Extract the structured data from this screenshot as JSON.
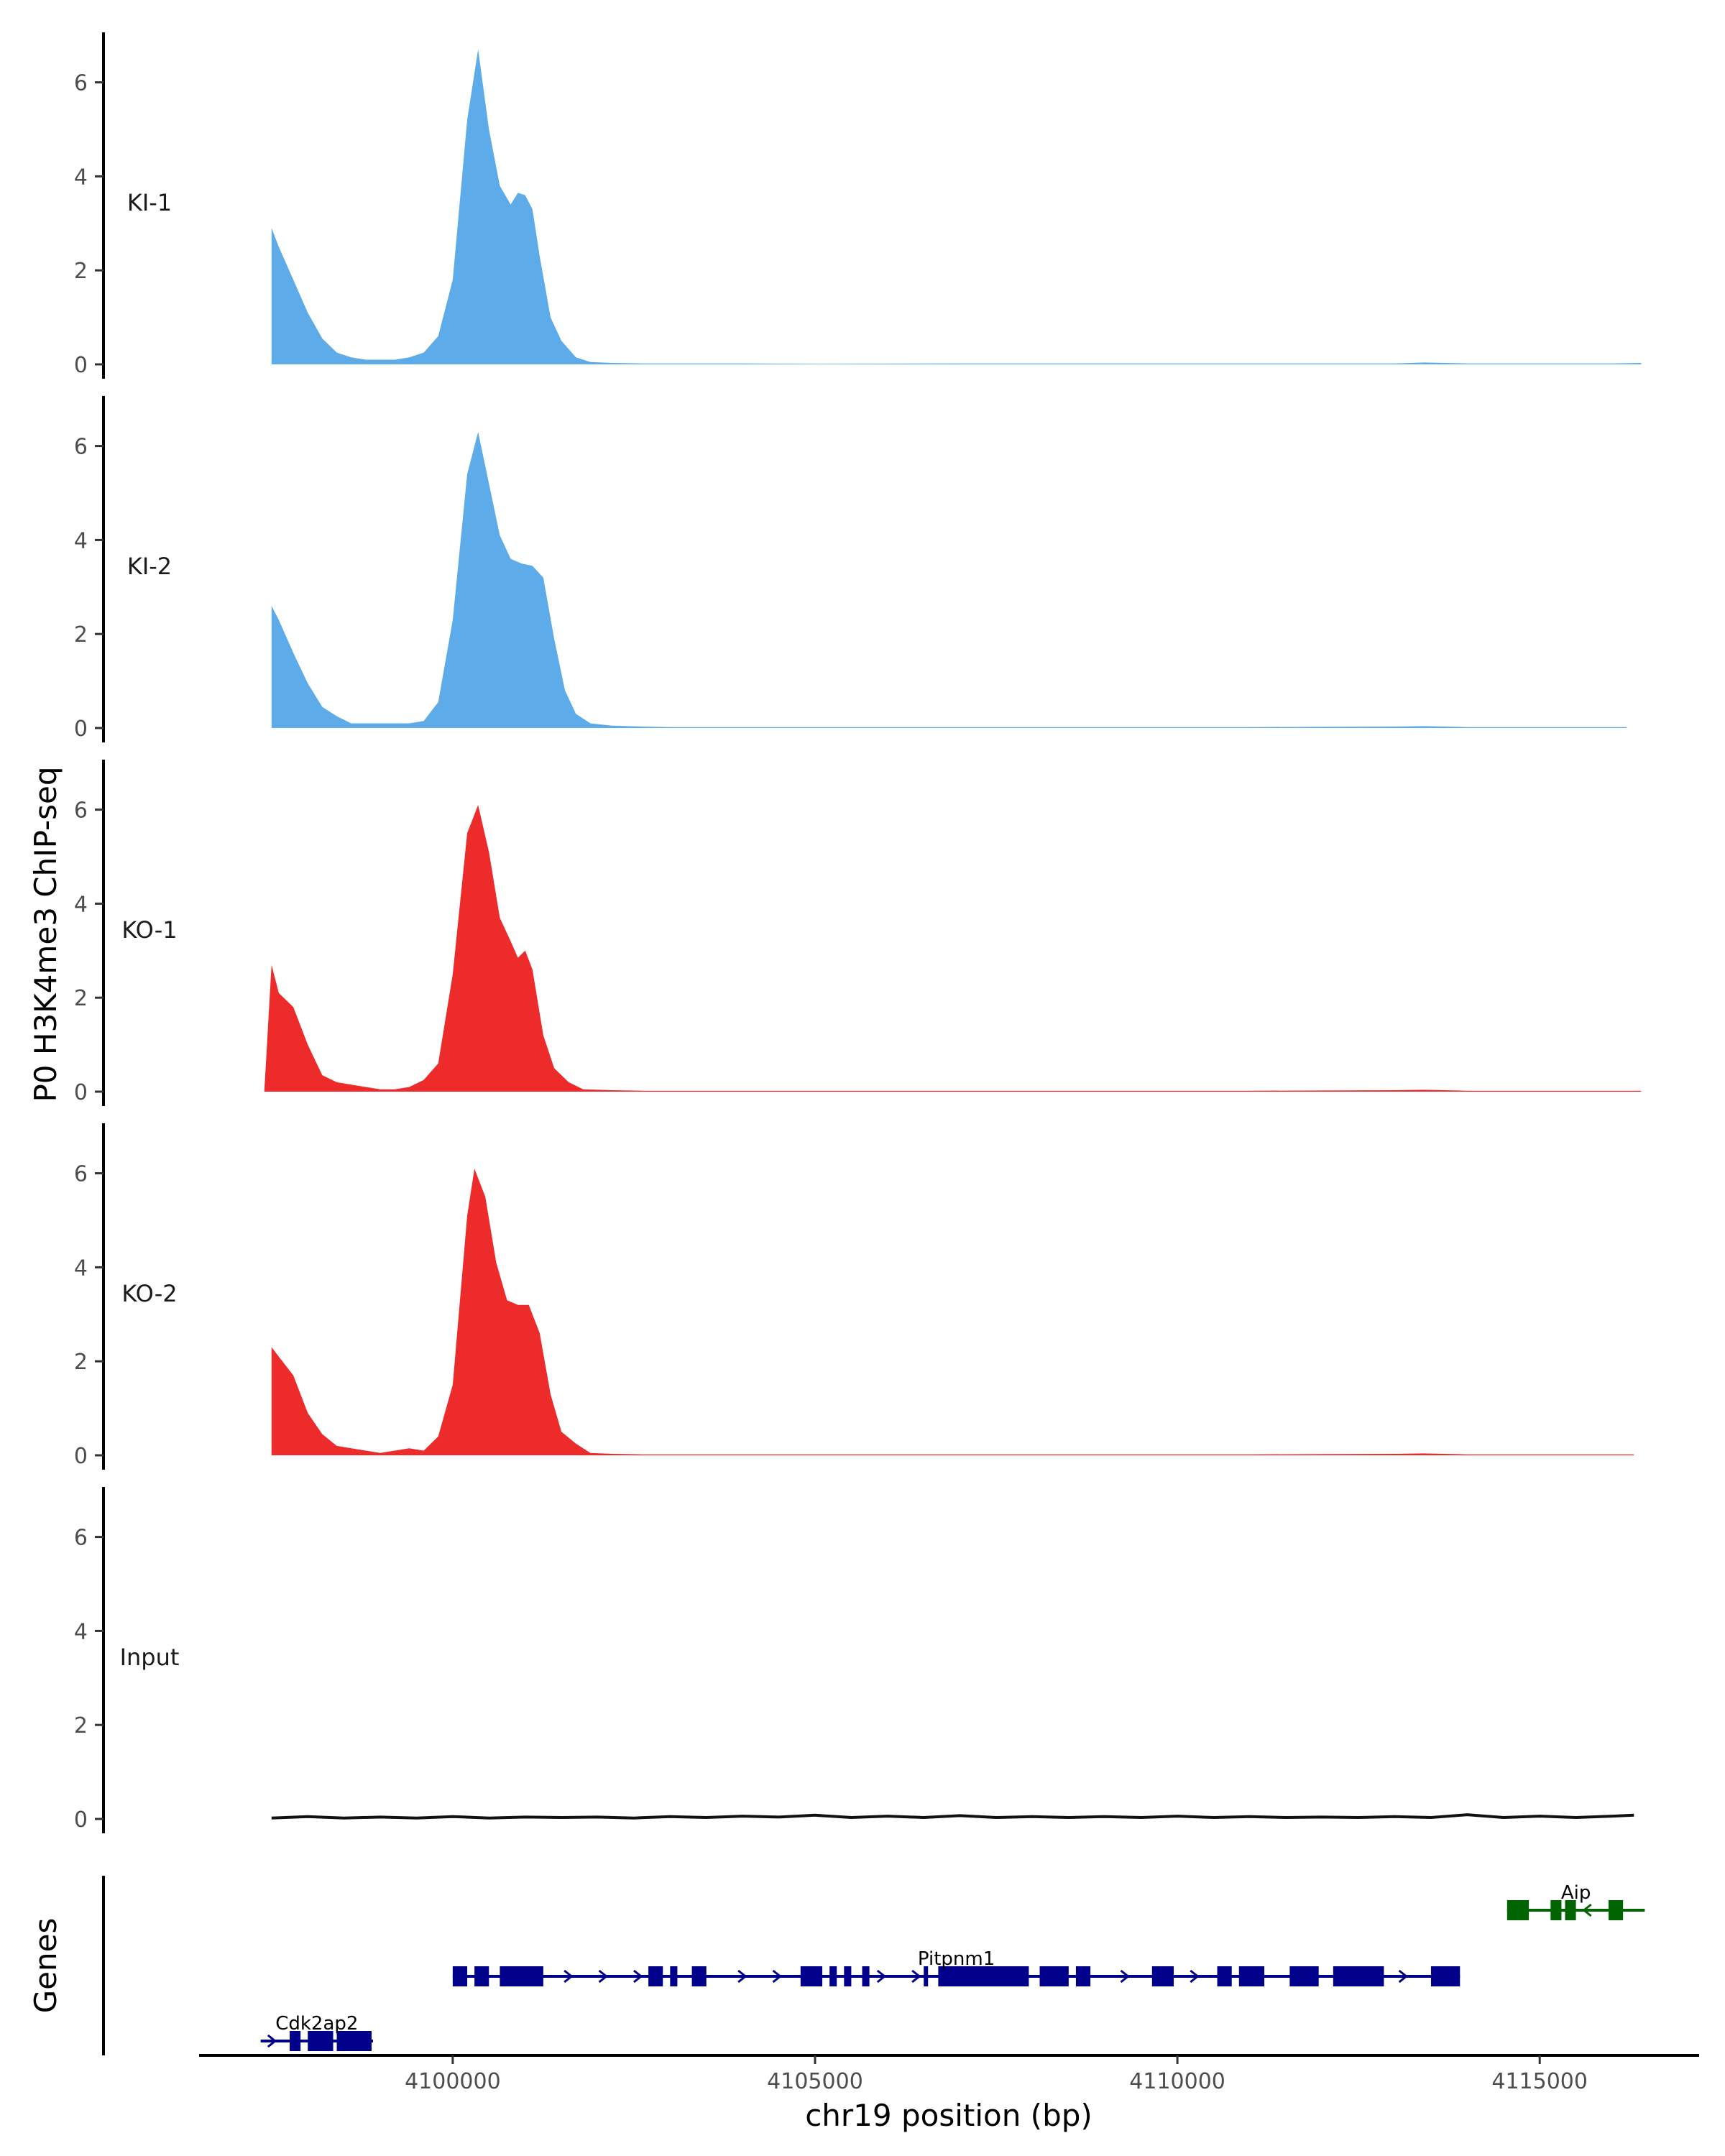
{
  "chart_data": {
    "type": "area",
    "xlabel": "chr19 position (bp)",
    "ylabel": "P0 H3K4me3 ChIP-seq",
    "gene_track_label": "Genes",
    "xlim": [
      4096500,
      4117200
    ],
    "x_ticks": [
      4100000,
      4105000,
      4110000,
      4115000
    ],
    "x_tick_labels": [
      "4100000",
      "4105000",
      "4110000",
      "4115000"
    ],
    "ylim": [
      0,
      7
    ],
    "y_ticks": [
      0,
      2,
      4,
      6
    ],
    "y_tick_labels": [
      "0",
      "2",
      "4",
      "6"
    ],
    "grid": false,
    "legend": "none",
    "colors": {
      "KI": "#5dabe9",
      "KO": "#ee2b2b",
      "Input": "#111111",
      "plus_strand_gene": "#00008b",
      "minus_strand_gene": "#006400"
    },
    "series": [
      {
        "name": "KI-1",
        "color": "#5dabe9",
        "x": [
          4097500,
          4097600,
          4097800,
          4098000,
          4098200,
          4098400,
          4098600,
          4098800,
          4099000,
          4099200,
          4099400,
          4099600,
          4099800,
          4100000,
          4100200,
          4100350,
          4100500,
          4100650,
          4100800,
          4100900,
          4101000,
          4101100,
          4101200,
          4101350,
          4101500,
          4101700,
          4101900,
          4102200,
          4102600,
          4103000,
          4104000,
          4105000,
          4107000,
          4109000,
          4111000,
          4113000,
          4113400,
          4114000,
          4115000,
          4116000,
          4116400
        ],
        "y": [
          2.9,
          2.5,
          1.8,
          1.1,
          0.55,
          0.25,
          0.15,
          0.1,
          0.1,
          0.1,
          0.15,
          0.25,
          0.6,
          1.8,
          5.2,
          6.7,
          5.0,
          3.8,
          3.4,
          3.65,
          3.6,
          3.3,
          2.3,
          1.0,
          0.5,
          0.15,
          0.05,
          0.03,
          0.02,
          0.02,
          0.02,
          0.01,
          0.02,
          0.02,
          0.02,
          0.02,
          0.04,
          0.02,
          0.02,
          0.02,
          0.03
        ]
      },
      {
        "name": "KI-2",
        "color": "#5dabe9",
        "x": [
          4097500,
          4097600,
          4097800,
          4098000,
          4098200,
          4098400,
          4098600,
          4098800,
          4099000,
          4099200,
          4099400,
          4099600,
          4099800,
          4100000,
          4100200,
          4100350,
          4100500,
          4100650,
          4100800,
          4100950,
          4101100,
          4101250,
          4101400,
          4101550,
          4101700,
          4101900,
          4102200,
          4102600,
          4103000,
          4104000,
          4105000,
          4107000,
          4109000,
          4111000,
          4113000,
          4113400,
          4114000,
          4115000,
          4116000,
          4116200
        ],
        "y": [
          2.6,
          2.3,
          1.6,
          0.95,
          0.45,
          0.25,
          0.1,
          0.1,
          0.1,
          0.1,
          0.1,
          0.15,
          0.55,
          2.3,
          5.4,
          6.3,
          5.2,
          4.1,
          3.6,
          3.5,
          3.45,
          3.2,
          1.9,
          0.8,
          0.3,
          0.1,
          0.05,
          0.03,
          0.02,
          0.02,
          0.02,
          0.02,
          0.02,
          0.02,
          0.03,
          0.04,
          0.02,
          0.02,
          0.02,
          0.02
        ]
      },
      {
        "name": "KO-1",
        "color": "#ee2b2b",
        "x": [
          4097400,
          4097500,
          4097600,
          4097800,
          4098000,
          4098200,
          4098400,
          4098600,
          4098800,
          4099000,
          4099200,
          4099400,
          4099600,
          4099800,
          4100000,
          4100200,
          4100350,
          4100500,
          4100650,
          4100800,
          4100900,
          4101000,
          4101100,
          4101250,
          4101400,
          4101600,
          4101800,
          4102200,
          4102600,
          4103000,
          4104000,
          4105000,
          4107000,
          4109000,
          4111000,
          4113000,
          4113400,
          4114000,
          4115000,
          4116000,
          4116400
        ],
        "y": [
          0.0,
          2.7,
          2.1,
          1.8,
          1.0,
          0.35,
          0.2,
          0.15,
          0.1,
          0.05,
          0.05,
          0.1,
          0.25,
          0.6,
          2.5,
          5.5,
          6.1,
          5.1,
          3.7,
          3.2,
          2.85,
          3.0,
          2.6,
          1.2,
          0.5,
          0.2,
          0.05,
          0.03,
          0.02,
          0.02,
          0.02,
          0.02,
          0.02,
          0.02,
          0.02,
          0.03,
          0.04,
          0.02,
          0.02,
          0.02,
          0.02
        ]
      },
      {
        "name": "KO-2",
        "color": "#ee2b2b",
        "x": [
          4097500,
          4097600,
          4097800,
          4098000,
          4098200,
          4098400,
          4098600,
          4098800,
          4099000,
          4099200,
          4099400,
          4099600,
          4099800,
          4100000,
          4100200,
          4100300,
          4100450,
          4100600,
          4100750,
          4100900,
          4101050,
          4101200,
          4101350,
          4101500,
          4101700,
          4101900,
          4102200,
          4102600,
          4103000,
          4104000,
          4105000,
          4107000,
          4109000,
          4111000,
          4113000,
          4113400,
          4114000,
          4115000,
          4116000,
          4116300
        ],
        "y": [
          2.3,
          2.1,
          1.7,
          0.9,
          0.45,
          0.2,
          0.15,
          0.1,
          0.05,
          0.1,
          0.15,
          0.1,
          0.4,
          1.5,
          5.1,
          6.1,
          5.5,
          4.1,
          3.3,
          3.2,
          3.2,
          2.6,
          1.3,
          0.5,
          0.25,
          0.05,
          0.03,
          0.02,
          0.02,
          0.02,
          0.02,
          0.02,
          0.02,
          0.02,
          0.03,
          0.04,
          0.02,
          0.02,
          0.02,
          0.02
        ]
      },
      {
        "name": "Input",
        "color": "#111111",
        "x": [
          4097500,
          4098000,
          4098500,
          4099000,
          4099500,
          4100000,
          4100500,
          4101000,
          4101500,
          4102000,
          4102500,
          4103000,
          4103500,
          4104000,
          4104500,
          4105000,
          4105500,
          4106000,
          4106500,
          4107000,
          4107500,
          4108000,
          4108500,
          4109000,
          4109500,
          4110000,
          4110500,
          4111000,
          4111500,
          4112000,
          4112500,
          4113000,
          4113500,
          4114000,
          4114500,
          4115000,
          4115500,
          4116000,
          4116300
        ],
        "y": [
          0.02,
          0.05,
          0.02,
          0.04,
          0.02,
          0.05,
          0.02,
          0.04,
          0.03,
          0.04,
          0.02,
          0.05,
          0.03,
          0.06,
          0.04,
          0.08,
          0.03,
          0.06,
          0.03,
          0.07,
          0.03,
          0.05,
          0.03,
          0.05,
          0.03,
          0.06,
          0.03,
          0.05,
          0.03,
          0.04,
          0.03,
          0.05,
          0.03,
          0.09,
          0.03,
          0.06,
          0.03,
          0.06,
          0.08
        ]
      }
    ],
    "genes": [
      {
        "name": "Cdk2ap2",
        "strand": "+",
        "color": "#00008b",
        "row": 0,
        "start": 4097350,
        "end": 4098900,
        "exons": [
          [
            4097750,
            4097900
          ],
          [
            4098000,
            4098350
          ],
          [
            4098400,
            4098880
          ]
        ]
      },
      {
        "name": "Pitpnm1",
        "strand": "+",
        "color": "#00008b",
        "row": 1,
        "start": 4100000,
        "end": 4113900,
        "exons": [
          [
            4100000,
            4100200
          ],
          [
            4100300,
            4100500
          ],
          [
            4100650,
            4101250
          ],
          [
            4102700,
            4102900
          ],
          [
            4103000,
            4103100
          ],
          [
            4103300,
            4103500
          ],
          [
            4104800,
            4105100
          ],
          [
            4105200,
            4105300
          ],
          [
            4105400,
            4105500
          ],
          [
            4105650,
            4105750
          ],
          [
            4106500,
            4106550
          ],
          [
            4106700,
            4107950
          ],
          [
            4108100,
            4108500
          ],
          [
            4108600,
            4108800
          ],
          [
            4109650,
            4109950
          ],
          [
            4110550,
            4110750
          ],
          [
            4110850,
            4111200
          ],
          [
            4111550,
            4111950
          ],
          [
            4112150,
            4112850
          ],
          [
            4113500,
            4113900
          ]
        ]
      },
      {
        "name": "Aip",
        "strand": "-",
        "color": "#006400",
        "row": 2,
        "start": 4114550,
        "end": 4116450,
        "exons": [
          [
            4114550,
            4114850
          ],
          [
            4115150,
            4115300
          ],
          [
            4115350,
            4115500
          ],
          [
            4115950,
            4116150
          ]
        ]
      }
    ]
  }
}
